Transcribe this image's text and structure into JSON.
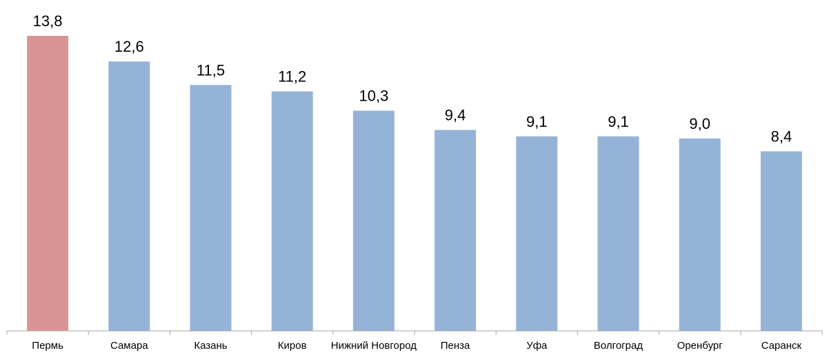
{
  "chart_data": {
    "type": "bar",
    "categories": [
      "Пермь",
      "Самара",
      "Казань",
      "Киров",
      "Нижний Новгород",
      "Пенза",
      "Уфа",
      "Волгоград",
      "Оренбург",
      "Саранск"
    ],
    "values": [
      13.8,
      12.6,
      11.5,
      11.2,
      10.3,
      9.4,
      9.1,
      9.1,
      9.0,
      8.4
    ],
    "value_labels": [
      "13,8",
      "12,6",
      "11,5",
      "11,2",
      "10,3",
      "9,4",
      "9,1",
      "9,1",
      "9,0",
      "8,4"
    ],
    "title": "",
    "xlabel": "",
    "ylabel": "",
    "ylim": [
      0,
      13.8
    ],
    "grid": false,
    "legend": "none",
    "colors": {
      "highlight": "#D99594",
      "default": "#95B3D7",
      "axis": "#A6A6A6"
    },
    "highlight_index": 0
  }
}
